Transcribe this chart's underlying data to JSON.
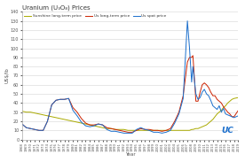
{
  "title": "Uranium (U₃O₈) Prices",
  "xlabel": "Year",
  "ylabel": "US$/lb",
  "ylim": [
    0,
    140
  ],
  "yticks": [
    0,
    10,
    20,
    30,
    40,
    50,
    60,
    70,
    80,
    90,
    100,
    110,
    120,
    130,
    140
  ],
  "legend": [
    "Us long-term price",
    "Us spot price",
    "Sunshine long-term price"
  ],
  "line_colors": [
    "#cc2200",
    "#1a6ecc",
    "#aaaa00"
  ],
  "bg_color": "#ffffff",
  "plot_bg": "#ffffff",
  "grid_color": "#dddddd",
  "years": [
    1968,
    1969,
    1970,
    1971,
    1972,
    1973,
    1974,
    1975,
    1976,
    1977,
    1978,
    1979,
    1980,
    1981,
    1982,
    1983,
    1984,
    1985,
    1986,
    1987,
    1988,
    1989,
    1990,
    1991,
    1992,
    1993,
    1994,
    1995,
    1996,
    1997,
    1998,
    1999,
    2000,
    2001,
    2002,
    2003,
    2004,
    2005,
    2006,
    2007,
    2007.5,
    2008,
    2008.3,
    2009,
    2009.5,
    2010,
    2010.5,
    2011,
    2011.5,
    2012,
    2012.5,
    2013,
    2013.5,
    2014,
    2014.5,
    2015,
    2015.5,
    2016,
    2016.5,
    2017,
    2017.5,
    2018,
    2019
  ],
  "spot": [
    17,
    13,
    12,
    11,
    10,
    10,
    20,
    38,
    43,
    44,
    44,
    45,
    32,
    26,
    19,
    15,
    14,
    15,
    17,
    16,
    11,
    9,
    9,
    8,
    7,
    7,
    7,
    11,
    13,
    11,
    10,
    8,
    8,
    7,
    8,
    10,
    18,
    28,
    45,
    130,
    100,
    63,
    80,
    50,
    44,
    46,
    52,
    55,
    50,
    48,
    43,
    37,
    35,
    33,
    37,
    30,
    34,
    28,
    27,
    26,
    25,
    24,
    26
  ],
  "longterm": [
    17,
    13,
    12,
    11,
    10,
    10,
    20,
    38,
    43,
    44,
    44,
    45,
    35,
    30,
    23,
    18,
    16,
    16,
    17,
    16,
    13,
    12,
    11,
    10,
    9,
    8,
    8,
    10,
    12,
    11,
    11,
    10,
    10,
    9,
    10,
    12,
    20,
    30,
    48,
    85,
    90,
    90,
    92,
    42,
    42,
    52,
    60,
    62,
    60,
    57,
    52,
    48,
    48,
    44,
    42,
    40,
    36,
    33,
    30,
    28,
    25,
    25,
    32
  ],
  "sunshine": [
    31,
    30,
    30,
    29,
    28,
    27,
    26,
    25,
    24,
    23,
    22,
    21,
    20,
    19,
    18,
    17,
    16,
    15,
    14,
    13,
    12,
    12,
    11,
    11,
    11,
    10,
    10,
    10,
    10,
    10,
    10,
    10,
    10,
    10,
    10,
    10,
    10,
    10,
    10,
    10,
    10,
    11,
    11,
    12,
    12,
    13,
    14,
    15,
    16,
    18,
    20,
    22,
    25,
    28,
    30,
    32,
    35,
    37,
    40,
    42,
    44,
    45,
    46
  ]
}
